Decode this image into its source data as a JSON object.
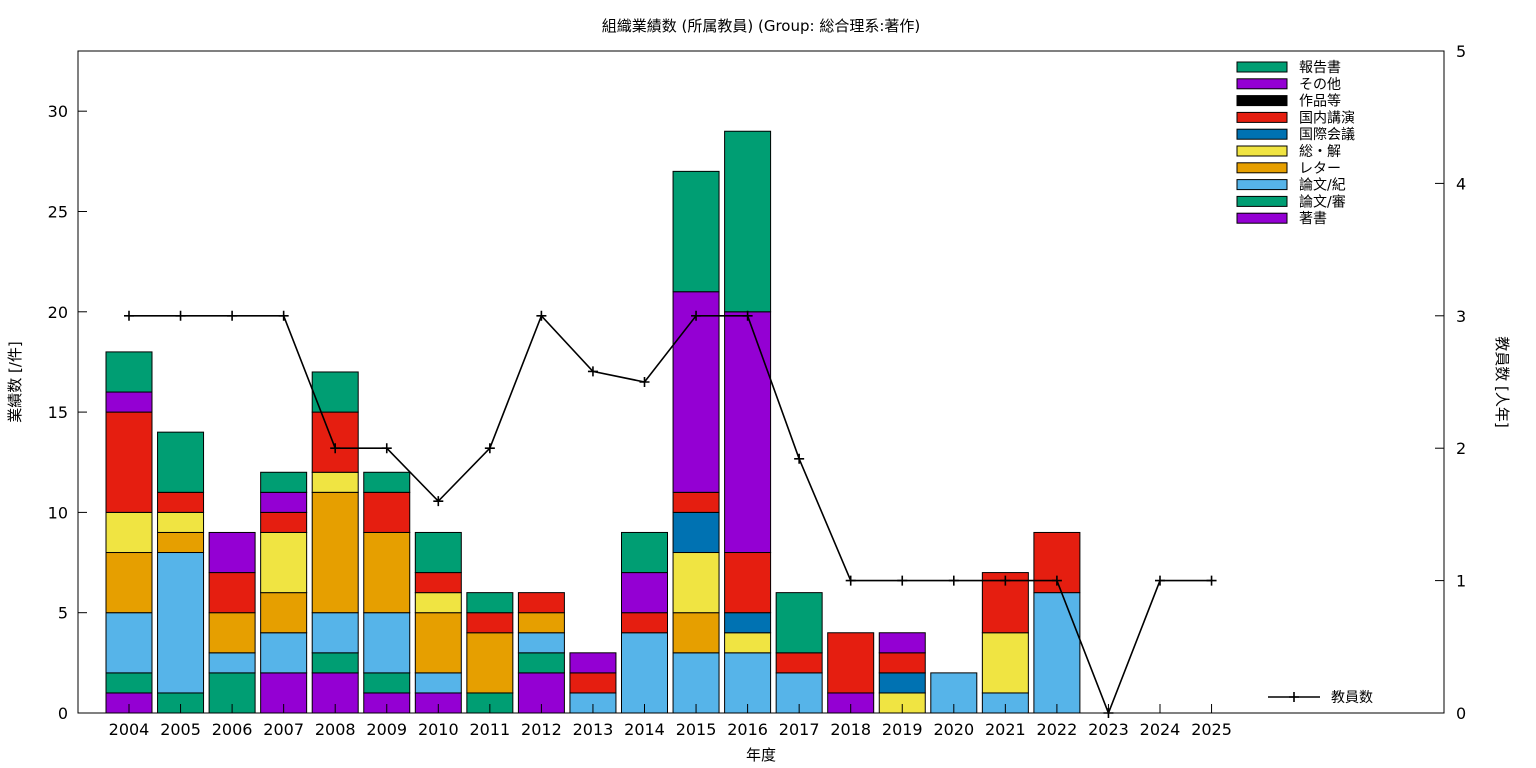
{
  "chart_data": {
    "type": "bar",
    "stacked": true,
    "title": "組織業績数 (所属教員) (Group: 総合理系:著作)",
    "xlabel": "年度",
    "ylabel": "業績数 [/件]",
    "y2label": "教員数 [人年]",
    "ylim": [
      0,
      33
    ],
    "y2lim": [
      0,
      5
    ],
    "yticks": [
      0,
      5,
      10,
      15,
      20,
      25,
      30
    ],
    "y2ticks": [
      0,
      1,
      2,
      3,
      4,
      5
    ],
    "grid": false,
    "legend_position": "top-right",
    "categories": [
      "2004",
      "2005",
      "2006",
      "2007",
      "2008",
      "2009",
      "2010",
      "2011",
      "2012",
      "2013",
      "2014",
      "2015",
      "2016",
      "2017",
      "2018",
      "2019",
      "2020",
      "2021",
      "2022",
      "2023",
      "2024",
      "2025"
    ],
    "series": [
      {
        "name": "著書",
        "color": "#9400d3",
        "values": [
          1,
          0,
          0,
          2,
          2,
          1,
          1,
          0,
          2,
          0,
          0,
          0,
          0,
          0,
          1,
          0,
          0,
          0,
          0,
          0,
          0,
          0
        ]
      },
      {
        "name": "論文/審",
        "color": "#009e73",
        "values": [
          1,
          1,
          2,
          0,
          1,
          1,
          0,
          1,
          1,
          0,
          0,
          0,
          0,
          0,
          0,
          0,
          0,
          0,
          0,
          0,
          0,
          0
        ]
      },
      {
        "name": "論文/紀",
        "color": "#56b4e9",
        "values": [
          3,
          7,
          1,
          2,
          2,
          3,
          1,
          0,
          1,
          1,
          4,
          3,
          3,
          2,
          0,
          0,
          2,
          1,
          6,
          0,
          0,
          0
        ]
      },
      {
        "name": "レター",
        "color": "#e69f00",
        "values": [
          3,
          1,
          2,
          2,
          6,
          4,
          3,
          3,
          1,
          0,
          0,
          2,
          0,
          0,
          0,
          0,
          0,
          0,
          0,
          0,
          0,
          0
        ]
      },
      {
        "name": "総・解",
        "color": "#f0e442",
        "values": [
          2,
          1,
          0,
          3,
          1,
          0,
          1,
          0,
          0,
          0,
          0,
          3,
          1,
          0,
          0,
          1,
          0,
          3,
          0,
          0,
          0,
          0
        ]
      },
      {
        "name": "国際会議",
        "color": "#0072b2",
        "values": [
          0,
          0,
          0,
          0,
          0,
          0,
          0,
          0,
          0,
          0,
          0,
          2,
          1,
          0,
          0,
          1,
          0,
          0,
          0,
          0,
          0,
          0
        ]
      },
      {
        "name": "国内講演",
        "color": "#e51e10",
        "values": [
          5,
          1,
          2,
          1,
          3,
          2,
          1,
          1,
          1,
          1,
          1,
          1,
          3,
          1,
          3,
          1,
          0,
          3,
          3,
          0,
          0,
          0
        ]
      },
      {
        "name": "作品等",
        "color": "#000000",
        "values": [
          0,
          0,
          0,
          0,
          0,
          0,
          0,
          0,
          0,
          0,
          0,
          0,
          0,
          0,
          0,
          0,
          0,
          0,
          0,
          0,
          0,
          0
        ]
      },
      {
        "name": "その他",
        "color": "#9400d3",
        "values": [
          1,
          0,
          2,
          1,
          0,
          0,
          0,
          0,
          0,
          1,
          2,
          10,
          12,
          0,
          0,
          1,
          0,
          0,
          0,
          0,
          0,
          0
        ]
      },
      {
        "name": "報告書",
        "color": "#009e73",
        "values": [
          2,
          3,
          0,
          1,
          2,
          1,
          2,
          1,
          0,
          0,
          2,
          6,
          9,
          3,
          0,
          0,
          0,
          0,
          0,
          0,
          0,
          0
        ]
      }
    ],
    "line": {
      "name": "教員数",
      "color": "#000000",
      "axis": "y2",
      "values": [
        3,
        3,
        3,
        3,
        2,
        2,
        1.6,
        2,
        3,
        2.58,
        2.5,
        3,
        3,
        1.92,
        1,
        1,
        1,
        1,
        1,
        0,
        1,
        1
      ]
    }
  }
}
